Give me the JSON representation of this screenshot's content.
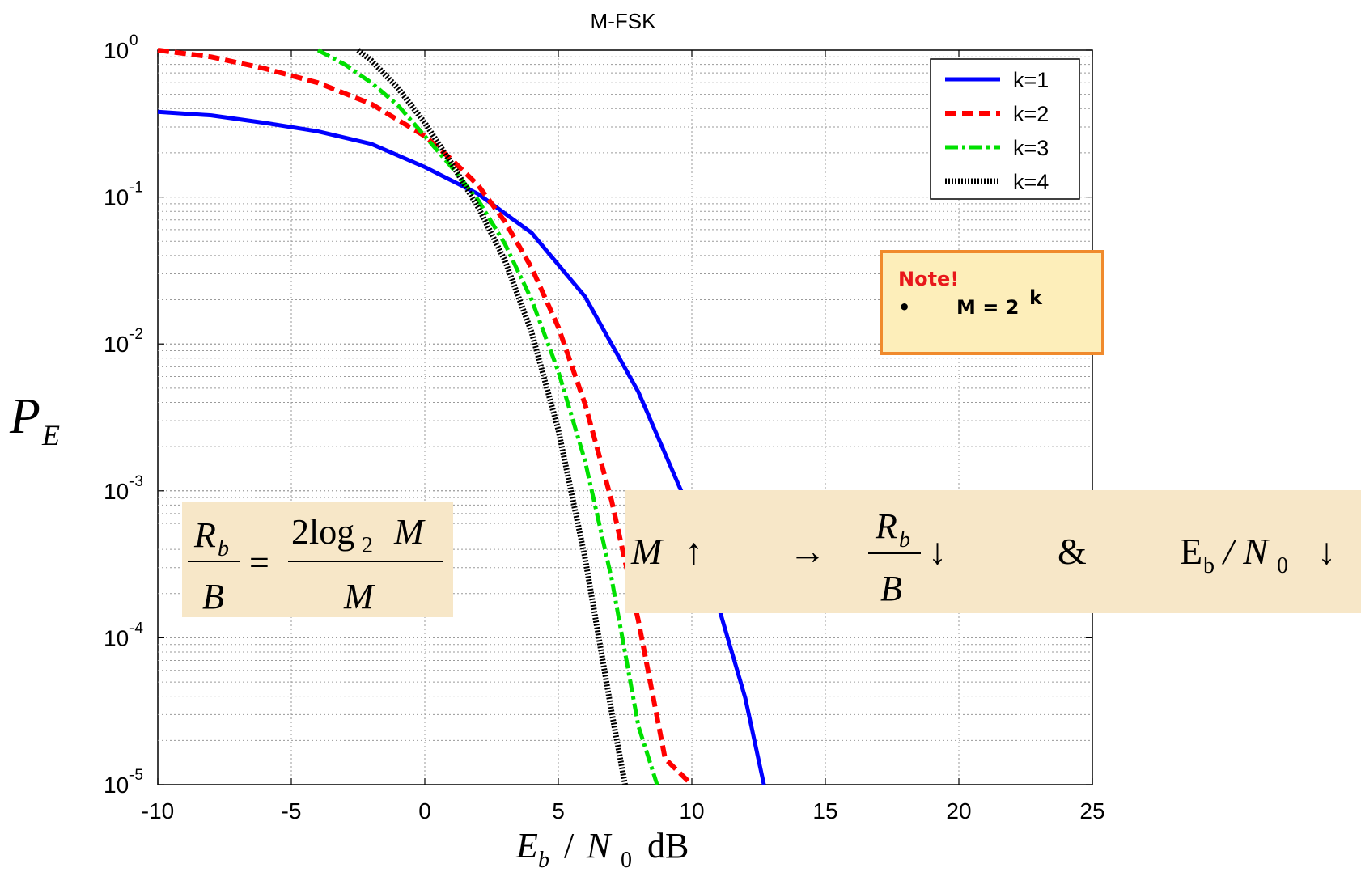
{
  "chart_data": {
    "type": "line",
    "title": "M-FSK",
    "xlabel": "E_b / N_0 dB",
    "ylabel": "P_E",
    "xlim": [
      -10,
      25
    ],
    "ylim": [
      1e-05,
      1
    ],
    "yscale": "log",
    "grid": true,
    "legend_position": "top-right",
    "x_ticks": [
      "-10",
      "-5",
      "0",
      "5",
      "10",
      "15",
      "20",
      "25"
    ],
    "y_ticks": [
      {
        "base": "10",
        "exp": "0"
      },
      {
        "base": "10",
        "exp": "-1"
      },
      {
        "base": "10",
        "exp": "-2"
      },
      {
        "base": "10",
        "exp": "-3"
      },
      {
        "base": "10",
        "exp": "-4"
      },
      {
        "base": "10",
        "exp": "-5"
      }
    ],
    "series": [
      {
        "name": "k=1",
        "color": "#0000ff",
        "style": "solid",
        "x": [
          -10,
          -8,
          -6,
          -4,
          -2,
          0,
          2,
          4,
          6,
          8,
          10,
          12,
          12.7
        ],
        "y": [
          0.38,
          0.36,
          0.32,
          0.28,
          0.23,
          0.16,
          0.105,
          0.057,
          0.021,
          0.0047,
          0.00068,
          3.9e-05,
          1e-05
        ]
      },
      {
        "name": "k=2",
        "color": "#ff0000",
        "style": "dashed",
        "x": [
          -10,
          -8,
          -6,
          -4,
          -2,
          0,
          1,
          2,
          3,
          4,
          5,
          6,
          7,
          8,
          9,
          10
        ],
        "y": [
          1.0,
          0.9,
          0.75,
          0.6,
          0.43,
          0.26,
          0.18,
          0.12,
          0.068,
          0.033,
          0.013,
          0.0039,
          0.00085,
          0.00013,
          1.5e-05,
          9.5e-06
        ]
      },
      {
        "name": "k=3",
        "color": "#00e000",
        "style": "dashdot",
        "x": [
          -4,
          -3,
          -2,
          -1,
          0,
          1,
          2,
          3,
          4,
          5,
          6,
          7,
          8,
          8.7
        ],
        "y": [
          1.0,
          0.8,
          0.6,
          0.42,
          0.26,
          0.16,
          0.095,
          0.048,
          0.02,
          0.0065,
          0.0016,
          0.00025,
          2.5e-05,
          9.5e-06
        ]
      },
      {
        "name": "k=4",
        "color": "#000000",
        "style": "dotted",
        "x": [
          -2.5,
          -2,
          -1,
          0,
          1,
          2,
          3,
          4,
          5,
          6,
          7,
          7.5
        ],
        "y": [
          1.0,
          0.85,
          0.55,
          0.32,
          0.17,
          0.085,
          0.037,
          0.012,
          0.0026,
          0.00035,
          3.1e-05,
          9.5e-06
        ]
      }
    ]
  },
  "note": {
    "heading": "Note!",
    "bullet": "•",
    "text": "M = 2",
    "superscript": "k"
  },
  "formula_left": {
    "num_left": "R",
    "num_left_sub": "b",
    "den_left": "B",
    "equals": "=",
    "num_right_coef": "2log",
    "num_right_sub": "2",
    "num_right_var": "M",
    "den_right": "M"
  },
  "formula_right": {
    "m": "M",
    "up": "↑",
    "arrow": "→",
    "num": "R",
    "num_sub": "b",
    "den": "B",
    "down1": "↓",
    "amp": "&",
    "eb": "E",
    "eb_sub": "b",
    "slash_n": "/ N",
    "n_sub": "0",
    "down2": "↓"
  },
  "axis_labels": {
    "y_main": "P",
    "y_sub": "E",
    "x_e": "E",
    "x_e_sub": "b",
    "x_slash": "/",
    "x_n": "N",
    "x_n_sub": "0",
    "x_unit": "dB"
  },
  "colors": {
    "note_border": "#f08a2c",
    "note_bg": "#fdeeba",
    "formula_bg": "#f7e7c8"
  }
}
